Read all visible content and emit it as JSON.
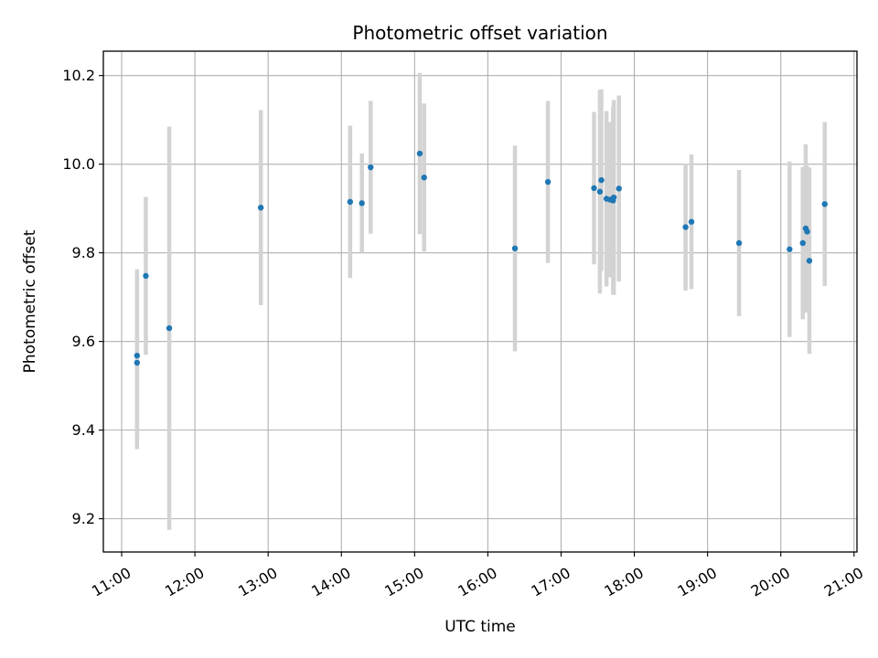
{
  "chart_data": {
    "type": "scatter",
    "title": "Photometric offset variation",
    "xlabel": "UTC time",
    "ylabel": "Photometric offset",
    "x_unit": "hours UTC",
    "xlim": [
      10.75,
      21.04
    ],
    "ylim": [
      9.125,
      10.255
    ],
    "x_ticks": [
      11,
      12,
      13,
      14,
      15,
      16,
      17,
      18,
      19,
      20,
      21
    ],
    "x_tick_labels": [
      "11:00",
      "12:00",
      "13:00",
      "14:00",
      "15:00",
      "16:00",
      "17:00",
      "18:00",
      "19:00",
      "20:00",
      "21:00"
    ],
    "y_ticks": [
      9.2,
      9.4,
      9.6,
      9.8,
      10.0,
      10.2
    ],
    "y_tick_labels": [
      "9.2",
      "9.4",
      "9.6",
      "9.8",
      "10.0",
      "10.2"
    ],
    "grid": true,
    "marker_color": "#1f77b4",
    "errorbar_color": "#d3d3d3",
    "points": [
      {
        "x": 11.21,
        "y": 9.568,
        "err": 0.195
      },
      {
        "x": 11.21,
        "y": 9.552,
        "err": 0.195
      },
      {
        "x": 11.33,
        "y": 9.748,
        "err": 0.178
      },
      {
        "x": 11.65,
        "y": 9.63,
        "err": 0.455
      },
      {
        "x": 12.9,
        "y": 9.902,
        "err": 0.22
      },
      {
        "x": 14.12,
        "y": 9.915,
        "err": 0.172
      },
      {
        "x": 14.28,
        "y": 9.912,
        "err": 0.112
      },
      {
        "x": 14.4,
        "y": 9.993,
        "err": 0.15
      },
      {
        "x": 15.07,
        "y": 10.024,
        "err": 0.182
      },
      {
        "x": 15.13,
        "y": 9.97,
        "err": 0.167
      },
      {
        "x": 16.37,
        "y": 9.81,
        "err": 0.232
      },
      {
        "x": 16.82,
        "y": 9.96,
        "err": 0.183
      },
      {
        "x": 17.45,
        "y": 9.946,
        "err": 0.172
      },
      {
        "x": 17.53,
        "y": 9.938,
        "err": 0.23
      },
      {
        "x": 17.55,
        "y": 9.964,
        "err": 0.205
      },
      {
        "x": 17.62,
        "y": 9.922,
        "err": 0.198
      },
      {
        "x": 17.67,
        "y": 9.92,
        "err": 0.175
      },
      {
        "x": 17.71,
        "y": 9.918,
        "err": 0.212
      },
      {
        "x": 17.72,
        "y": 9.925,
        "err": 0.22
      },
      {
        "x": 17.79,
        "y": 9.945,
        "err": 0.21
      },
      {
        "x": 18.7,
        "y": 9.858,
        "err": 0.143
      },
      {
        "x": 18.78,
        "y": 9.87,
        "err": 0.152
      },
      {
        "x": 19.43,
        "y": 9.822,
        "err": 0.165
      },
      {
        "x": 20.12,
        "y": 9.808,
        "err": 0.198
      },
      {
        "x": 20.3,
        "y": 9.822,
        "err": 0.172
      },
      {
        "x": 20.34,
        "y": 9.855,
        "err": 0.19
      },
      {
        "x": 20.36,
        "y": 9.848,
        "err": 0.148
      },
      {
        "x": 20.39,
        "y": 9.782,
        "err": 0.21
      },
      {
        "x": 20.6,
        "y": 9.91,
        "err": 0.185
      }
    ]
  }
}
